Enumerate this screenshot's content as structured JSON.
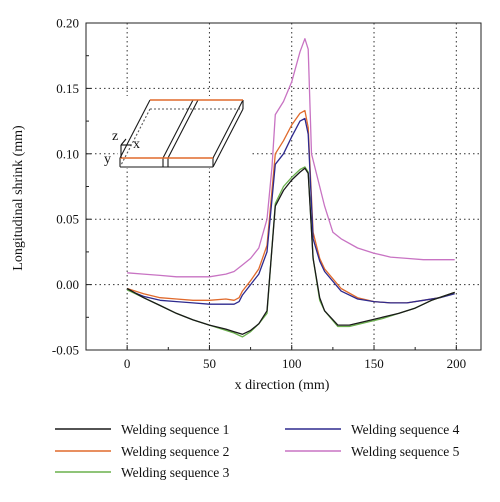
{
  "chart_data": {
    "type": "line",
    "xlabel": "x direction (mm)",
    "ylabel": "Longitudinal shrink (mm)",
    "xlim": [
      -25,
      215
    ],
    "ylim": [
      -0.05,
      0.2
    ],
    "x_ticks": [
      "0",
      "50",
      "100",
      "150",
      "200"
    ],
    "y_ticks": [
      "-0.05",
      "0.00",
      "0.05",
      "0.10",
      "0.15",
      "0.20"
    ],
    "grid": "dotted",
    "legend_position": "bottom",
    "inset_labels": [
      "z",
      "x",
      "y"
    ],
    "series": [
      {
        "name": "Welding sequence 1",
        "color": "#1a1a1a",
        "points": [
          [
            0,
            -0.003
          ],
          [
            10,
            -0.01
          ],
          [
            20,
            -0.016
          ],
          [
            30,
            -0.022
          ],
          [
            40,
            -0.027
          ],
          [
            50,
            -0.031
          ],
          [
            60,
            -0.034
          ],
          [
            65,
            -0.036
          ],
          [
            70,
            -0.038
          ],
          [
            75,
            -0.035
          ],
          [
            80,
            -0.03
          ],
          [
            85,
            -0.02
          ],
          [
            90,
            0.06
          ],
          [
            95,
            0.072
          ],
          [
            100,
            0.08
          ],
          [
            105,
            0.086
          ],
          [
            108,
            0.089
          ],
          [
            110,
            0.085
          ],
          [
            113,
            0.02
          ],
          [
            117,
            -0.01
          ],
          [
            120,
            -0.02
          ],
          [
            128,
            -0.031
          ],
          [
            135,
            -0.031
          ],
          [
            145,
            -0.028
          ],
          [
            155,
            -0.025
          ],
          [
            165,
            -0.022
          ],
          [
            175,
            -0.018
          ],
          [
            185,
            -0.012
          ],
          [
            199,
            -0.006
          ]
        ]
      },
      {
        "name": "Welding sequence 2",
        "color": "#e06a2c",
        "points": [
          [
            0,
            -0.003
          ],
          [
            10,
            -0.007
          ],
          [
            20,
            -0.01
          ],
          [
            30,
            -0.011
          ],
          [
            40,
            -0.012
          ],
          [
            50,
            -0.012
          ],
          [
            60,
            -0.011
          ],
          [
            65,
            -0.012
          ],
          [
            68,
            -0.01
          ],
          [
            70,
            -0.005
          ],
          [
            75,
            0.003
          ],
          [
            80,
            0.012
          ],
          [
            85,
            0.03
          ],
          [
            90,
            0.1
          ],
          [
            95,
            0.11
          ],
          [
            100,
            0.122
          ],
          [
            105,
            0.131
          ],
          [
            108,
            0.133
          ],
          [
            110,
            0.12
          ],
          [
            113,
            0.04
          ],
          [
            117,
            0.02
          ],
          [
            120,
            0.012
          ],
          [
            130,
            -0.003
          ],
          [
            140,
            -0.01
          ],
          [
            150,
            -0.013
          ],
          [
            160,
            -0.014
          ],
          [
            170,
            -0.014
          ],
          [
            180,
            -0.012
          ],
          [
            190,
            -0.01
          ],
          [
            199,
            -0.006
          ]
        ]
      },
      {
        "name": "Welding sequence 3",
        "color": "#6ab04c",
        "points": [
          [
            0,
            -0.004
          ],
          [
            10,
            -0.01
          ],
          [
            20,
            -0.016
          ],
          [
            30,
            -0.022
          ],
          [
            40,
            -0.027
          ],
          [
            50,
            -0.031
          ],
          [
            60,
            -0.035
          ],
          [
            65,
            -0.037
          ],
          [
            70,
            -0.04
          ],
          [
            75,
            -0.036
          ],
          [
            80,
            -0.03
          ],
          [
            85,
            -0.022
          ],
          [
            90,
            0.062
          ],
          [
            95,
            0.075
          ],
          [
            100,
            0.082
          ],
          [
            105,
            0.088
          ],
          [
            108,
            0.09
          ],
          [
            110,
            0.086
          ],
          [
            113,
            0.02
          ],
          [
            117,
            -0.012
          ],
          [
            120,
            -0.02
          ],
          [
            128,
            -0.032
          ],
          [
            135,
            -0.032
          ],
          [
            145,
            -0.029
          ],
          [
            155,
            -0.026
          ],
          [
            165,
            -0.022
          ],
          [
            175,
            -0.018
          ],
          [
            185,
            -0.012
          ],
          [
            199,
            -0.006
          ]
        ]
      },
      {
        "name": "Welding sequence 4",
        "color": "#2e2a8e",
        "points": [
          [
            0,
            -0.004
          ],
          [
            10,
            -0.009
          ],
          [
            20,
            -0.012
          ],
          [
            30,
            -0.013
          ],
          [
            40,
            -0.014
          ],
          [
            50,
            -0.015
          ],
          [
            60,
            -0.015
          ],
          [
            65,
            -0.015
          ],
          [
            68,
            -0.013
          ],
          [
            70,
            -0.008
          ],
          [
            75,
            0.0
          ],
          [
            80,
            0.008
          ],
          [
            85,
            0.025
          ],
          [
            90,
            0.092
          ],
          [
            95,
            0.1
          ],
          [
            100,
            0.113
          ],
          [
            105,
            0.125
          ],
          [
            108,
            0.127
          ],
          [
            110,
            0.115
          ],
          [
            113,
            0.035
          ],
          [
            117,
            0.018
          ],
          [
            120,
            0.01
          ],
          [
            130,
            -0.005
          ],
          [
            140,
            -0.011
          ],
          [
            150,
            -0.013
          ],
          [
            160,
            -0.014
          ],
          [
            170,
            -0.014
          ],
          [
            180,
            -0.012
          ],
          [
            190,
            -0.01
          ],
          [
            199,
            -0.007
          ]
        ]
      },
      {
        "name": "Welding sequence 5",
        "color": "#c873c3",
        "points": [
          [
            0,
            0.009
          ],
          [
            10,
            0.008
          ],
          [
            20,
            0.007
          ],
          [
            30,
            0.006
          ],
          [
            40,
            0.006
          ],
          [
            50,
            0.006
          ],
          [
            60,
            0.008
          ],
          [
            65,
            0.01
          ],
          [
            70,
            0.015
          ],
          [
            75,
            0.02
          ],
          [
            80,
            0.028
          ],
          [
            85,
            0.05
          ],
          [
            88,
            0.09
          ],
          [
            90,
            0.13
          ],
          [
            95,
            0.14
          ],
          [
            100,
            0.155
          ],
          [
            105,
            0.178
          ],
          [
            108,
            0.188
          ],
          [
            110,
            0.18
          ],
          [
            112,
            0.1
          ],
          [
            115,
            0.085
          ],
          [
            120,
            0.06
          ],
          [
            125,
            0.04
          ],
          [
            130,
            0.035
          ],
          [
            140,
            0.028
          ],
          [
            150,
            0.024
          ],
          [
            160,
            0.021
          ],
          [
            170,
            0.02
          ],
          [
            180,
            0.019
          ],
          [
            190,
            0.019
          ],
          [
            199,
            0.019
          ]
        ]
      }
    ]
  }
}
